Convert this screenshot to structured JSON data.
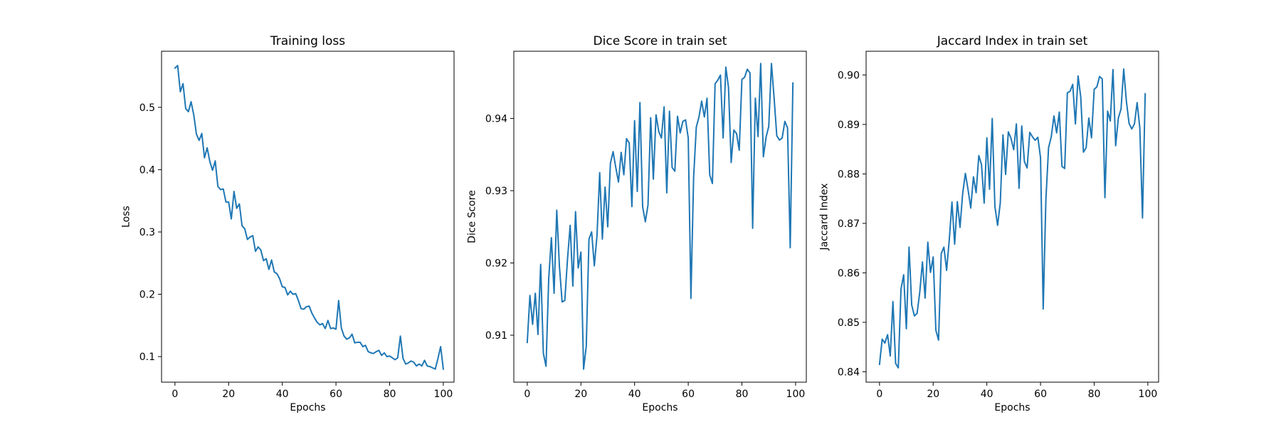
{
  "chart_data": [
    {
      "type": "line",
      "title": "Training loss",
      "xlabel": "Epochs",
      "ylabel": "Loss",
      "xlim": [
        -5,
        104
      ],
      "ylim": [
        0.059,
        0.59
      ],
      "xticks": [
        0,
        20,
        40,
        60,
        80,
        100
      ],
      "xtick_labels": [
        "0",
        "20",
        "40",
        "60",
        "80",
        "100"
      ],
      "yticks": [
        0.1,
        0.2,
        0.3,
        0.4,
        0.5
      ],
      "ytick_labels": [
        "0.1",
        "0.2",
        "0.3",
        "0.4",
        "0.5"
      ],
      "grid": false,
      "color": "#1f77b4",
      "series": [
        {
          "values": [
            0.563,
            0.567,
            0.525,
            0.538,
            0.498,
            0.493,
            0.509,
            0.488,
            0.457,
            0.447,
            0.458,
            0.419,
            0.435,
            0.413,
            0.399,
            0.414,
            0.373,
            0.368,
            0.369,
            0.348,
            0.348,
            0.321,
            0.365,
            0.338,
            0.345,
            0.31,
            0.305,
            0.288,
            0.292,
            0.294,
            0.269,
            0.276,
            0.271,
            0.254,
            0.257,
            0.24,
            0.255,
            0.236,
            0.233,
            0.225,
            0.212,
            0.211,
            0.199,
            0.205,
            0.2,
            0.201,
            0.19,
            0.177,
            0.176,
            0.18,
            0.181,
            0.17,
            0.162,
            0.155,
            0.151,
            0.153,
            0.145,
            0.158,
            0.145,
            0.146,
            0.144,
            0.19,
            0.146,
            0.133,
            0.128,
            0.13,
            0.136,
            0.122,
            0.123,
            0.123,
            0.116,
            0.118,
            0.108,
            0.106,
            0.105,
            0.108,
            0.11,
            0.102,
            0.106,
            0.1,
            0.101,
            0.098,
            0.095,
            0.098,
            0.133,
            0.097,
            0.088,
            0.09,
            0.093,
            0.091,
            0.085,
            0.088,
            0.085,
            0.094,
            0.085,
            0.084,
            0.082,
            0.08,
            0.097,
            0.116,
            0.08
          ]
        }
      ]
    },
    {
      "type": "line",
      "title": "Dice Score in train set",
      "xlabel": "Epochs",
      "ylabel": "Dice Score",
      "xlim": [
        -5,
        104
      ],
      "ylim": [
        0.9035,
        0.9493
      ],
      "xticks": [
        0,
        20,
        40,
        60,
        80,
        100
      ],
      "xtick_labels": [
        "0",
        "20",
        "40",
        "60",
        "80",
        "100"
      ],
      "yticks": [
        0.91,
        0.92,
        0.93,
        0.94
      ],
      "ytick_labels": [
        "0.91",
        "0.92",
        "0.93",
        "0.94"
      ],
      "grid": false,
      "color": "#1f77b4",
      "series": [
        {
          "values": [
            0.909,
            0.9155,
            0.9115,
            0.9158,
            0.9101,
            0.9198,
            0.9075,
            0.9057,
            0.9178,
            0.9235,
            0.9158,
            0.9273,
            0.9195,
            0.9146,
            0.9148,
            0.9205,
            0.9252,
            0.9168,
            0.9271,
            0.9193,
            0.9215,
            0.9053,
            0.9085,
            0.9233,
            0.9243,
            0.9196,
            0.9238,
            0.9325,
            0.9233,
            0.9305,
            0.925,
            0.9338,
            0.9354,
            0.9332,
            0.9312,
            0.9353,
            0.9322,
            0.9372,
            0.9366,
            0.9278,
            0.9397,
            0.9299,
            0.9422,
            0.9278,
            0.9257,
            0.928,
            0.9401,
            0.9316,
            0.9405,
            0.9382,
            0.9373,
            0.9416,
            0.9297,
            0.941,
            0.9332,
            0.9327,
            0.9403,
            0.938,
            0.9396,
            0.9398,
            0.9373,
            0.9151,
            0.9318,
            0.9388,
            0.9402,
            0.9424,
            0.9402,
            0.9428,
            0.9322,
            0.931,
            0.9448,
            0.9453,
            0.946,
            0.9373,
            0.9471,
            0.9443,
            0.9339,
            0.9384,
            0.9379,
            0.9356,
            0.9454,
            0.9457,
            0.9468,
            0.9463,
            0.9248,
            0.9428,
            0.9375,
            0.9476,
            0.9347,
            0.9374,
            0.9389,
            0.9476,
            0.9428,
            0.9376,
            0.937,
            0.9373,
            0.9396,
            0.9387,
            0.9221,
            0.9449
          ]
        }
      ]
    },
    {
      "type": "line",
      "title": "Jaccard Index in train set",
      "xlabel": "Epochs",
      "ylabel": "Jaccard Index",
      "xlim": [
        -5,
        104
      ],
      "ylim": [
        0.8379,
        0.9048
      ],
      "xticks": [
        0,
        20,
        40,
        60,
        80,
        100
      ],
      "xtick_labels": [
        "0",
        "20",
        "40",
        "60",
        "80",
        "100"
      ],
      "yticks": [
        0.84,
        0.85,
        0.86,
        0.87,
        0.88,
        0.89,
        0.9
      ],
      "ytick_labels": [
        "0.84",
        "0.85",
        "0.86",
        "0.87",
        "0.88",
        "0.89",
        "0.90"
      ],
      "grid": false,
      "color": "#1f77b4",
      "series": [
        {
          "values": [
            0.8415,
            0.8466,
            0.8458,
            0.8475,
            0.8432,
            0.8542,
            0.8417,
            0.8408,
            0.8567,
            0.8596,
            0.8487,
            0.8652,
            0.8535,
            0.8513,
            0.8518,
            0.8561,
            0.8622,
            0.8549,
            0.8662,
            0.8601,
            0.8632,
            0.8484,
            0.8464,
            0.8639,
            0.8652,
            0.8605,
            0.8667,
            0.8743,
            0.8658,
            0.8744,
            0.8692,
            0.8761,
            0.8801,
            0.8768,
            0.8731,
            0.8794,
            0.8762,
            0.8837,
            0.8819,
            0.8741,
            0.8873,
            0.8769,
            0.8912,
            0.8734,
            0.8696,
            0.8741,
            0.8879,
            0.8799,
            0.8885,
            0.8872,
            0.8849,
            0.8901,
            0.8771,
            0.8897,
            0.8825,
            0.8812,
            0.8884,
            0.8875,
            0.8868,
            0.8874,
            0.8833,
            0.8527,
            0.8748,
            0.8853,
            0.8875,
            0.8917,
            0.8883,
            0.8925,
            0.8815,
            0.8811,
            0.8964,
            0.8967,
            0.8981,
            0.8901,
            0.8998,
            0.8955,
            0.8844,
            0.8853,
            0.8913,
            0.8873,
            0.8971,
            0.8976,
            0.8997,
            0.8992,
            0.8752,
            0.8927,
            0.8907,
            0.9011,
            0.8857,
            0.8913,
            0.8931,
            0.9012,
            0.8947,
            0.8902,
            0.8891,
            0.8901,
            0.8944,
            0.8893,
            0.8711,
            0.8962
          ]
        }
      ]
    }
  ]
}
